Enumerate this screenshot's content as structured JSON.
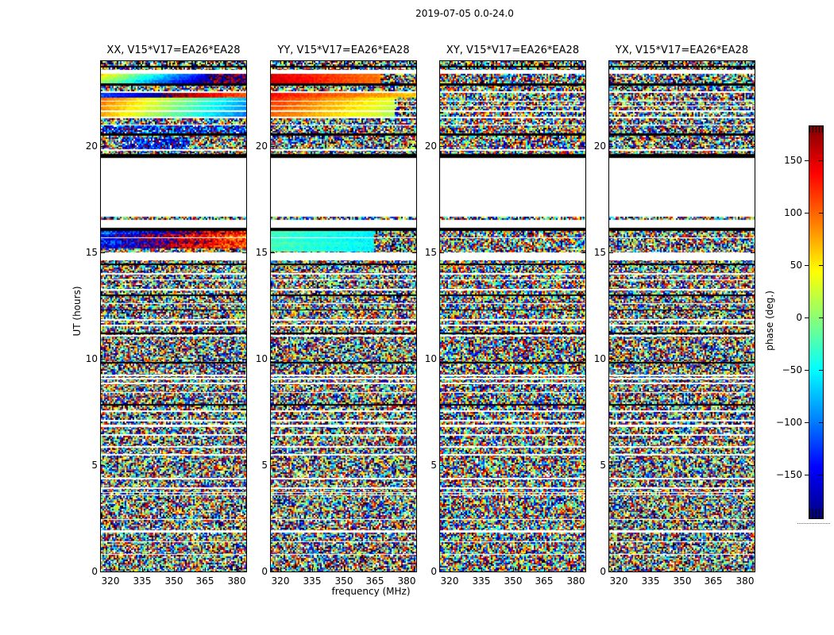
{
  "chart_data": {
    "type": "heatmap",
    "title": "2019-07-05 0.0-24.0",
    "xlabel": "frequency (MHz)",
    "ylabel": "UT (hours)",
    "xlim": [
      315.5,
      384.5
    ],
    "ylim": [
      0,
      24
    ],
    "xticks": [
      320,
      335,
      350,
      365,
      380
    ],
    "yticks": [
      0,
      5,
      10,
      15,
      20
    ],
    "grid": false,
    "note": "Four waterfall panels of interferometric visibility phase vs frequency (x) and UT time (y); uncalibrated data appears as uniform random phase noise; smooth phase-gradient bands appear near UT 15-16 and UT 21-23.5 in XX and YY; white rows are flagged/missing data, black rows are zero-phase rows.",
    "panels": [
      {
        "id": "XX",
        "title": "XX, V15*V17=EA26*EA28",
        "features": [
          {
            "type": "grad",
            "ut0": 23.0,
            "ut1": 23.42,
            "p0": 60,
            "p1": -200,
            "drift": -60,
            "jitter": 14,
            "noise_right": 0.28,
            "noise_range": [
              140,
              220
            ]
          },
          {
            "type": "grad",
            "ut0": 22.3,
            "ut1": 22.52,
            "p0": -110,
            "p1": -260,
            "jitter": 16
          },
          {
            "type": "grad",
            "ut0": 21.38,
            "ut1": 22.3,
            "p0": 100,
            "p1": -70,
            "drift": -30,
            "jitter": 10
          },
          {
            "type": "bias",
            "ut0": 20.62,
            "ut1": 20.97,
            "center": -120,
            "spread": 80
          },
          {
            "type": "bias",
            "ut0": 19.85,
            "ut1": 20.4,
            "center": -130,
            "spread": 70,
            "x0": 0.15,
            "x1": 0.6
          },
          {
            "type": "grad",
            "ut0": 15.2,
            "ut1": 16.0,
            "p0": -120,
            "p1": -250,
            "jitter": 45,
            "drift": -20
          }
        ]
      },
      {
        "id": "YY",
        "title": "YY, V15*V17=EA26*EA28",
        "features": [
          {
            "type": "grad",
            "ut0": 23.0,
            "ut1": 23.42,
            "p0": 150,
            "p1": 70,
            "jitter": 10,
            "noise_right": 0.25
          },
          {
            "type": "grad",
            "ut0": 22.3,
            "ut1": 22.52,
            "p0": 130,
            "p1": 60,
            "jitter": 12
          },
          {
            "type": "grad",
            "ut0": 21.38,
            "ut1": 22.3,
            "p0": 120,
            "p1": 20,
            "drift": -25,
            "jitter": 10,
            "noise_right": 0.15
          },
          {
            "type": "grad",
            "ut0": 15.03,
            "ut1": 16.0,
            "p0": -20,
            "p1": -60,
            "jitter": 12,
            "noise_right": 0.3
          }
        ]
      },
      {
        "id": "XY",
        "title": "XY, V15*V17=EA26*EA28",
        "features": []
      },
      {
        "id": "YX",
        "title": "YX, V15*V17=EA26*EA28",
        "features": []
      }
    ],
    "common_features": [
      {
        "type": "bias",
        "ut0": 23.58,
        "ut1": 24.0,
        "spread": 180,
        "black": 0.12
      },
      {
        "type": "black",
        "ut0": 23.7,
        "ut1": 23.76
      },
      {
        "type": "white",
        "ut0": 23.42,
        "ut1": 23.58
      },
      {
        "type": "black",
        "ut0": 22.86,
        "ut1": 22.96
      },
      {
        "type": "white",
        "ut0": 22.52,
        "ut1": 22.57
      },
      {
        "type": "white",
        "ut0": 22.1,
        "ut1": 22.15
      },
      {
        "type": "white",
        "ut0": 21.86,
        "ut1": 21.91
      },
      {
        "type": "white",
        "ut0": 21.62,
        "ut1": 21.67
      },
      {
        "type": "white",
        "ut0": 21.3,
        "ut1": 21.38
      },
      {
        "type": "white",
        "ut0": 20.97,
        "ut1": 21.02
      },
      {
        "type": "black",
        "ut0": 20.5,
        "ut1": 20.62
      },
      {
        "type": "white",
        "ut0": 19.8,
        "ut1": 19.85
      },
      {
        "type": "black",
        "ut0": 19.45,
        "ut1": 19.62
      },
      {
        "type": "white",
        "ut0": 16.15,
        "ut1": 19.45
      },
      {
        "type": "noise",
        "ut0": 16.55,
        "ut1": 16.68
      },
      {
        "type": "black",
        "ut0": 16.0,
        "ut1": 16.15
      },
      {
        "type": "white",
        "ut0": 15.68,
        "ut1": 15.73
      },
      {
        "type": "white",
        "ut0": 14.63,
        "ut1": 15.0
      },
      {
        "type": "black",
        "ut0": 14.42,
        "ut1": 14.5
      },
      {
        "type": "white",
        "ut0": 13.97,
        "ut1": 14.02
      },
      {
        "type": "white",
        "ut0": 13.68,
        "ut1": 13.73
      },
      {
        "type": "white",
        "ut0": 13.23,
        "ut1": 13.28
      },
      {
        "type": "black",
        "ut0": 12.96,
        "ut1": 13.02
      },
      {
        "type": "white",
        "ut0": 12.58,
        "ut1": 12.63
      },
      {
        "type": "black",
        "ut0": 12.27,
        "ut1": 12.33
      },
      {
        "type": "white",
        "ut0": 11.81,
        "ut1": 11.86
      },
      {
        "type": "white",
        "ut0": 11.55,
        "ut1": 11.6
      },
      {
        "type": "black",
        "ut0": 11.17,
        "ut1": 11.23
      },
      {
        "type": "white",
        "ut0": 11.06,
        "ut1": 11.11
      },
      {
        "type": "black",
        "ut0": 9.78,
        "ut1": 9.85
      },
      {
        "type": "white",
        "ut0": 9.2,
        "ut1": 9.25
      },
      {
        "type": "white",
        "ut0": 9.05,
        "ut1": 9.1
      },
      {
        "type": "white",
        "ut0": 8.82,
        "ut1": 8.87
      },
      {
        "type": "white",
        "ut0": 8.38,
        "ut1": 8.43
      },
      {
        "type": "black",
        "ut0": 7.8,
        "ut1": 7.87
      },
      {
        "type": "white",
        "ut0": 7.52,
        "ut1": 7.57
      },
      {
        "type": "white",
        "ut0": 7.07,
        "ut1": 7.12
      },
      {
        "type": "white",
        "ut0": 6.78,
        "ut1": 6.92
      },
      {
        "type": "white",
        "ut0": 6.4,
        "ut1": 6.45
      },
      {
        "type": "white",
        "ut0": 5.84,
        "ut1": 5.89
      },
      {
        "type": "white",
        "ut0": 5.46,
        "ut1": 5.51
      },
      {
        "type": "white",
        "ut0": 4.34,
        "ut1": 4.39
      },
      {
        "type": "white",
        "ut0": 3.9,
        "ut1": 3.95
      },
      {
        "type": "white",
        "ut0": 3.7,
        "ut1": 3.75
      },
      {
        "type": "white",
        "ut0": 3.58,
        "ut1": 3.63
      },
      {
        "type": "white",
        "ut0": 2.42,
        "ut1": 2.47
      },
      {
        "type": "white",
        "ut0": 1.83,
        "ut1": 1.95
      },
      {
        "type": "white",
        "ut0": 1.37,
        "ut1": 1.42
      },
      {
        "type": "white",
        "ut0": 0.77,
        "ut1": 0.82
      }
    ],
    "colorbar": {
      "label": "phase (deg.)",
      "ticks": [
        -150,
        -100,
        -50,
        0,
        50,
        100,
        150
      ],
      "vmin": -180,
      "vmax": 180,
      "colormap": "jet",
      "jet_stops": [
        "#000080",
        "#0000ff",
        "#0080ff",
        "#00ffff",
        "#80ff80",
        "#ffff00",
        "#ff8000",
        "#ff0000",
        "#800000"
      ]
    }
  }
}
